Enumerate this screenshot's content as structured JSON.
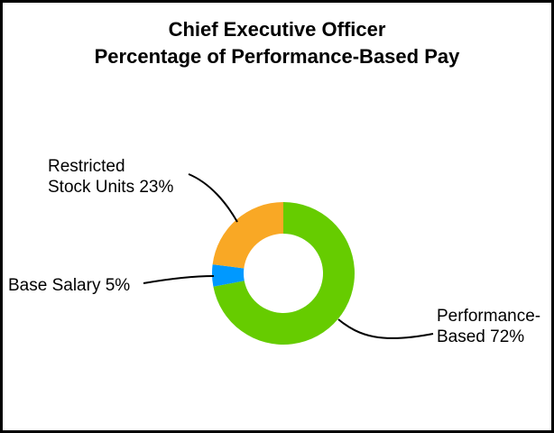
{
  "chart_data": {
    "type": "pie",
    "variant": "donut",
    "title": "Chief Executive Officer",
    "subtitle": "Percentage of Performance-Based Pay",
    "slices": [
      {
        "label_line1": "Performance-",
        "label_line2": "Based 72%",
        "value": 72,
        "color": "#66cc00"
      },
      {
        "label_line1": "Base Salary 5%",
        "label_line2": "",
        "value": 5,
        "color": "#0099ff"
      },
      {
        "label_line1": "Restricted",
        "label_line2": "Stock Units 23%",
        "value": 23,
        "color": "#f9a825"
      }
    ],
    "start_angle": "12 o'clock",
    "direction": "clockwise"
  }
}
